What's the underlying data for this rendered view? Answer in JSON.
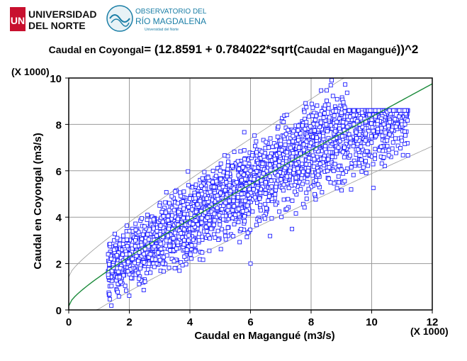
{
  "logos": {
    "university_line1": "UNIVERSIDAD",
    "university_line2": "DEL NORTE",
    "university_mark": "UN",
    "observatory_line1": "OBSERVATORIO DEL",
    "observatory_line2": "RÍO MAGDALENA",
    "observatory_line3": "Universidad del Norte",
    "university_color": "#c8102e",
    "observatory_color": "#1a7ea6"
  },
  "title": {
    "lhs": "Caudal en Coyongal",
    "eq_start": "= (12.8591 + 0.784022*sqrt(",
    "inner": "Caudal en Magangué",
    "eq_end": "))^2"
  },
  "chart_data": {
    "type": "scatter",
    "xlabel": "Caudal en Magangué (m3/s)",
    "ylabel": "Caudal en Coyongal (m3/s)",
    "x_multiplier": "(X 1000)",
    "y_multiplier": "(X 1000)",
    "xlim": [
      0,
      12
    ],
    "ylim": [
      0,
      10
    ],
    "x_ticks": [
      "0",
      "2",
      "4",
      "6",
      "8",
      "10",
      "12"
    ],
    "y_ticks": [
      "0",
      "2",
      "4",
      "6",
      "8",
      "10"
    ],
    "grid": true,
    "fit": {
      "intercept": 12.8591,
      "slope": 0.784022,
      "color": "#1a8a3a"
    },
    "band_color": "#999999",
    "point_color": "#1f1fff",
    "points": [
      [
        1.3,
        2.4
      ],
      [
        1.4,
        2.2
      ],
      [
        1.5,
        3.0
      ],
      [
        1.6,
        3.1
      ],
      [
        1.6,
        2.0
      ],
      [
        1.7,
        1.8
      ],
      [
        1.8,
        3.2
      ],
      [
        1.9,
        2.4
      ],
      [
        2.0,
        3.4
      ],
      [
        2.1,
        2.2
      ],
      [
        2.2,
        3.0
      ],
      [
        2.3,
        1.6
      ],
      [
        2.4,
        2.8
      ],
      [
        2.5,
        3.6
      ],
      [
        2.6,
        4.1
      ],
      [
        2.7,
        2.4
      ],
      [
        2.8,
        3.9
      ],
      [
        2.9,
        3.2
      ],
      [
        3.0,
        4.5
      ],
      [
        3.1,
        2.0
      ],
      [
        3.2,
        4.2
      ],
      [
        3.3,
        3.5
      ],
      [
        3.4,
        4.9
      ],
      [
        3.5,
        1.8
      ],
      [
        3.6,
        4.6
      ],
      [
        3.7,
        3.3
      ],
      [
        3.8,
        5.1
      ],
      [
        3.9,
        2.6
      ],
      [
        4.0,
        4.8
      ],
      [
        4.1,
        3.7
      ],
      [
        4.2,
        5.4
      ],
      [
        4.3,
        3.0
      ],
      [
        4.4,
        5.0
      ],
      [
        4.5,
        4.2
      ],
      [
        4.6,
        5.7
      ],
      [
        4.7,
        3.5
      ],
      [
        4.8,
        5.3
      ],
      [
        4.9,
        4.4
      ],
      [
        5.0,
        6.0
      ],
      [
        5.1,
        3.9
      ],
      [
        5.2,
        5.5
      ],
      [
        5.3,
        4.7
      ],
      [
        5.4,
        6.2
      ],
      [
        5.5,
        4.1
      ],
      [
        5.6,
        5.8
      ],
      [
        5.7,
        5.0
      ],
      [
        5.8,
        6.5
      ],
      [
        5.9,
        4.5
      ],
      [
        6.0,
        2.0
      ],
      [
        6.0,
        6.0
      ],
      [
        6.1,
        5.2
      ],
      [
        6.2,
        6.8
      ],
      [
        6.3,
        4.8
      ],
      [
        6.4,
        6.3
      ],
      [
        6.5,
        5.5
      ],
      [
        6.6,
        7.0
      ],
      [
        6.7,
        5.1
      ],
      [
        6.8,
        6.5
      ],
      [
        6.9,
        5.8
      ],
      [
        7.0,
        7.3
      ],
      [
        7.1,
        5.4
      ],
      [
        7.2,
        6.8
      ],
      [
        7.3,
        6.0
      ],
      [
        7.4,
        7.5
      ],
      [
        7.5,
        5.7
      ],
      [
        7.6,
        7.0
      ],
      [
        7.7,
        6.3
      ],
      [
        7.8,
        7.8
      ],
      [
        7.9,
        6.0
      ],
      [
        8.0,
        7.2
      ],
      [
        8.1,
        6.5
      ],
      [
        8.2,
        8.0
      ],
      [
        8.3,
        6.3
      ],
      [
        8.4,
        7.5
      ],
      [
        8.5,
        6.8
      ],
      [
        8.6,
        8.3
      ],
      [
        8.7,
        6.6
      ],
      [
        8.8,
        7.7
      ],
      [
        8.9,
        7.0
      ],
      [
        9.0,
        8.5
      ],
      [
        9.1,
        7.0
      ],
      [
        9.2,
        7.9
      ],
      [
        9.3,
        7.2
      ],
      [
        9.4,
        8.4
      ],
      [
        9.5,
        7.4
      ],
      [
        9.6,
        8.0
      ],
      [
        9.8,
        7.6
      ],
      [
        10.0,
        8.2
      ],
      [
        10.2,
        7.8
      ],
      [
        10.4,
        8.0
      ],
      [
        10.6,
        8.1
      ],
      [
        10.8,
        7.9
      ],
      [
        11.0,
        8.0
      ],
      [
        11.1,
        8.0
      ]
    ]
  }
}
